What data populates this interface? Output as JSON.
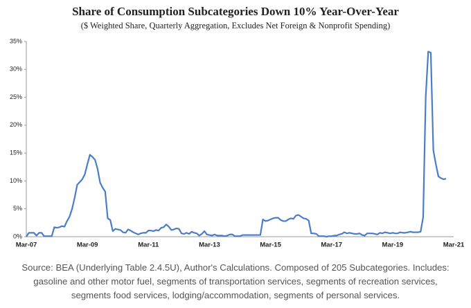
{
  "chart_data": {
    "type": "line",
    "title": "Share of Consumption Subcategories Down 10% Year-Over-Year",
    "subtitle": "($ Weighted Share, Quarterly Aggregation, Excludes Net Foreign & Nonprofit Spending)",
    "note": "Source: BEA (Underlying Table 2.4.5U), Author's Calculations. Composed of 205 Subcategories. Includes: gasoline and other motor fuel, segments of transportation services, segments of recreation services, segments food services, lodging/accommodation, segments of personal services.",
    "color": "#4a7cc9",
    "categories": [
      "Mar-07",
      null,
      null,
      null,
      null,
      null,
      null,
      null,
      null,
      null,
      null,
      null,
      null,
      null,
      null,
      null,
      null,
      null,
      null,
      null,
      null,
      null,
      null,
      null,
      "Mar-09",
      null,
      null,
      null,
      null,
      null,
      null,
      null,
      null,
      null,
      null,
      null,
      null,
      null,
      null,
      null,
      null,
      null,
      null,
      null,
      null,
      null,
      null,
      null,
      "Mar-11",
      null,
      null,
      null,
      null,
      null,
      null,
      null,
      null,
      null,
      null,
      null,
      null,
      null,
      null,
      null,
      null,
      null,
      null,
      null,
      null,
      null,
      null,
      null,
      "Mar-13",
      null,
      null,
      null,
      null,
      null,
      null,
      null,
      null,
      null,
      null,
      null,
      null,
      null,
      null,
      null,
      null,
      null,
      null,
      null,
      null,
      null,
      null,
      null,
      "Mar-15",
      null,
      null,
      null,
      null,
      null,
      null,
      null,
      null,
      null,
      null,
      null,
      null,
      null,
      null,
      null,
      null,
      null,
      null,
      null,
      null,
      null,
      null,
      null,
      "Mar-17",
      null,
      null,
      null,
      null,
      null,
      null,
      null,
      null,
      null,
      null,
      null,
      null,
      null,
      null,
      null,
      null,
      null,
      null,
      null,
      null,
      null,
      null,
      null,
      "Mar-19",
      null,
      null,
      null,
      null,
      null,
      null,
      null,
      null,
      null,
      null,
      null,
      null,
      null,
      null,
      null,
      null,
      null,
      null,
      null,
      null,
      null,
      null,
      null,
      "Mar-21"
    ],
    "values": [
      0,
      0.7,
      0.7,
      0.7,
      0.2,
      0.7,
      0.7,
      0.1,
      0.1,
      0.1,
      0.1,
      1.7,
      1.6,
      1.7,
      1.9,
      1.8,
      2.8,
      3.6,
      5.0,
      7.0,
      9.3,
      9.8,
      10.3,
      11.2,
      13.0,
      14.7,
      14.3,
      13.8,
      12.2,
      9.7,
      8.8,
      8.1,
      3.3,
      3.0,
      1.0,
      1.4,
      1.3,
      1.2,
      0.8,
      0.7,
      1.3,
      1.1,
      0.8,
      0.6,
      0.4,
      0.6,
      0.7,
      0.7,
      1.1,
      1.1,
      1.0,
      1.2,
      1.1,
      1.6,
      1.7,
      2.2,
      1.8,
      1.2,
      1.3,
      1.5,
      1.4,
      0.6,
      0.5,
      0.7,
      0.5,
      0.9,
      0.7,
      0.6,
      0.2,
      0.5,
      1.0,
      0.4,
      0.3,
      0.2,
      0.4,
      0.2,
      0.2,
      0.2,
      0.1,
      0.2,
      0.4,
      0.4,
      0.1,
      0.1,
      0.1,
      0.3,
      0.3,
      0.3,
      0.3,
      0.3,
      0.3,
      0.3,
      0.3,
      3.1,
      2.8,
      2.9,
      3.1,
      3.3,
      3.4,
      3.4,
      3.0,
      2.8,
      2.8,
      3.1,
      3.3,
      3.2,
      3.8,
      3.9,
      3.6,
      3.3,
      3.2,
      2.9,
      0.6,
      0.6,
      0.5,
      0.1,
      0.1,
      0.1,
      0,
      0.1,
      0.1,
      0.2,
      0.2,
      0.4,
      0.5,
      0.8,
      0.6,
      0.7,
      0.6,
      0.5,
      0.5,
      0.6,
      0.3,
      0.2,
      0.6,
      0.6,
      0.6,
      0.5,
      0.4,
      0.7,
      0.6,
      0.8,
      0.7,
      0.6,
      0.7,
      0.6,
      0.6,
      0.8,
      0.7,
      0.7,
      0.8,
      0.9,
      0.8,
      0.8,
      0.8,
      0.9,
      3.5,
      25,
      33.2,
      33,
      15.5,
      13,
      10.8,
      10.5,
      10.3,
      10.4,
      null,
      null,
      null
    ],
    "ylim": [
      0,
      35
    ],
    "yticks": [
      {
        "value": 0,
        "label": "0%"
      },
      {
        "value": 5,
        "label": "5%"
      },
      {
        "value": 10,
        "label": "10%"
      },
      {
        "value": 15,
        "label": "15%"
      },
      {
        "value": 20,
        "label": "20%"
      },
      {
        "value": 25,
        "label": "25%"
      },
      {
        "value": 30,
        "label": "30%"
      },
      {
        "value": 35,
        "label": "35%"
      }
    ]
  }
}
